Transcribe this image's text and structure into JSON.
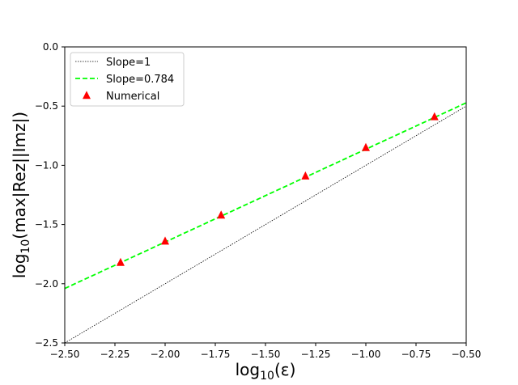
{
  "chart_data": {
    "type": "line",
    "xlabel_base": "log",
    "xlabel_sub": "10",
    "xlabel_arg": "(ε)",
    "ylabel_base": "log",
    "ylabel_sub": "10",
    "ylabel_arg": "(max|Rez||Imz|)",
    "xlim": [
      -2.5,
      -0.5
    ],
    "ylim": [
      -2.5,
      0.0
    ],
    "xticks": [
      -2.5,
      -2.25,
      -2.0,
      -1.75,
      -1.5,
      -1.25,
      -1.0,
      -0.75,
      -0.5
    ],
    "yticks": [
      -2.5,
      -2.0,
      -1.5,
      -1.0,
      -0.5,
      0.0
    ],
    "xtick_labels": [
      "−2.50",
      "−2.25",
      "−2.00",
      "−1.75",
      "−1.50",
      "−1.25",
      "−1.00",
      "−0.75",
      "−0.50"
    ],
    "ytick_labels": [
      "−2.5",
      "−2.0",
      "−1.5",
      "−1.0",
      "−0.5",
      "0.0"
    ],
    "grid": false,
    "legend_position": "top-left",
    "series": [
      {
        "name": "Slope=1",
        "style": "dotted",
        "color": "#000000",
        "x": [
          -2.5,
          -0.5
        ],
        "y": [
          -2.5,
          -0.5
        ]
      },
      {
        "name": "Slope=0.784",
        "style": "dashed",
        "color": "#00ff00",
        "x": [
          -2.5,
          -0.5
        ],
        "y": [
          -2.04,
          -0.472
        ]
      },
      {
        "name": "Numerical",
        "style": "markers",
        "marker": "triangle",
        "color": "#ff0000",
        "x": [
          -2.222,
          -2.0,
          -1.721,
          -1.301,
          -1.0,
          -0.658
        ],
        "y": [
          -1.82,
          -1.64,
          -1.42,
          -1.09,
          -0.85,
          -0.59
        ]
      }
    ]
  }
}
